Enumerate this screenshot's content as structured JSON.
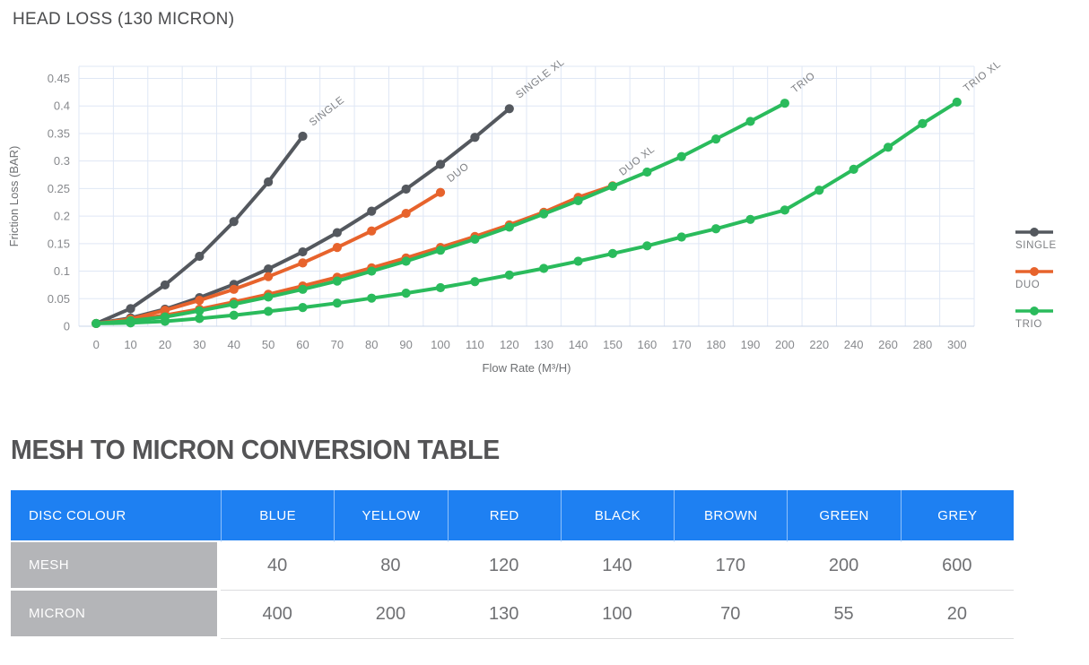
{
  "chart": {
    "title": "HEAD LOSS (130 MICRON)",
    "xlabel": "Flow Rate (M³/H)",
    "ylabel": "Friction Loss (BAR)"
  },
  "chart_data": {
    "type": "line",
    "title": "HEAD LOSS (130 MICRON)",
    "xlabel": "Flow Rate (M³/H)",
    "ylabel": "Friction Loss (BAR)",
    "grid": true,
    "legend_position": "right",
    "gridline_color": "#dfe7f5",
    "baseline_color": "#c9d4e8",
    "ylim": [
      0,
      0.472
    ],
    "yticks": [
      "0",
      "0.05",
      "0.1",
      "0.15",
      "0.2",
      "0.25",
      "0.3",
      "0.35",
      "0.4",
      "0.45"
    ],
    "x_categories": [
      "0",
      "10",
      "20",
      "30",
      "40",
      "50",
      "60",
      "70",
      "80",
      "90",
      "100",
      "110",
      "120",
      "130",
      "140",
      "150",
      "160",
      "170",
      "180",
      "190",
      "200",
      "220",
      "240",
      "260",
      "280",
      "300"
    ],
    "series": [
      {
        "name": "SINGLE XL",
        "color": "#54585E",
        "values": [
          0.005,
          0.015,
          0.031,
          0.052,
          0.076,
          0.104,
          0.135,
          0.17,
          0.209,
          0.249,
          0.294,
          0.343,
          0.395
        ]
      },
      {
        "name": "SINGLE",
        "color": "#54585E",
        "values": [
          0.005,
          0.032,
          0.075,
          0.127,
          0.19,
          0.262,
          0.345
        ]
      },
      {
        "name": "DUO XL",
        "color": "#E7632C",
        "values": [
          0.005,
          0.011,
          0.02,
          0.031,
          0.044,
          0.058,
          0.073,
          0.089,
          0.106,
          0.124,
          0.143,
          0.163,
          0.184,
          0.207,
          0.234,
          0.255
        ]
      },
      {
        "name": "DUO",
        "color": "#E7632C",
        "values": [
          0.005,
          0.013,
          0.029,
          0.047,
          0.067,
          0.09,
          0.115,
          0.143,
          0.173,
          0.205,
          0.243
        ]
      },
      {
        "name": "TRIO XL",
        "color": "#2ABB5C",
        "values": [
          0.005,
          0.006,
          0.009,
          0.014,
          0.02,
          0.027,
          0.034,
          0.042,
          0.051,
          0.06,
          0.07,
          0.081,
          0.093,
          0.105,
          0.118,
          0.132,
          0.146,
          0.162,
          0.177,
          0.194,
          0.211,
          0.247,
          0.285,
          0.325,
          0.368,
          0.407
        ]
      },
      {
        "name": "TRIO",
        "color": "#2ABB5C",
        "values": [
          0.005,
          0.01,
          0.017,
          0.028,
          0.04,
          0.053,
          0.067,
          0.082,
          0.1,
          0.118,
          0.138,
          0.158,
          0.18,
          0.204,
          0.228,
          0.254,
          0.28,
          0.308,
          0.34,
          0.372,
          0.405
        ]
      }
    ],
    "legend": [
      {
        "label": "SINGLE",
        "color": "#54585E"
      },
      {
        "label": "DUO",
        "color": "#E7632C"
      },
      {
        "label": "TRIO",
        "color": "#2ABB5C"
      }
    ]
  },
  "table": {
    "title": "MESH TO MICRON CONVERSION TABLE",
    "header_bg": "#1E80F2",
    "label_bg": "#B4B5B8",
    "header": [
      "DISC COLOUR",
      "BLUE",
      "YELLOW",
      "RED",
      "BLACK",
      "BROWN",
      "GREEN",
      "GREY"
    ],
    "rows": [
      {
        "label": "MESH",
        "values": [
          "40",
          "80",
          "120",
          "140",
          "170",
          "200",
          "600"
        ]
      },
      {
        "label": "MICRON",
        "values": [
          "400",
          "200",
          "130",
          "100",
          "70",
          "55",
          "20"
        ]
      }
    ]
  }
}
